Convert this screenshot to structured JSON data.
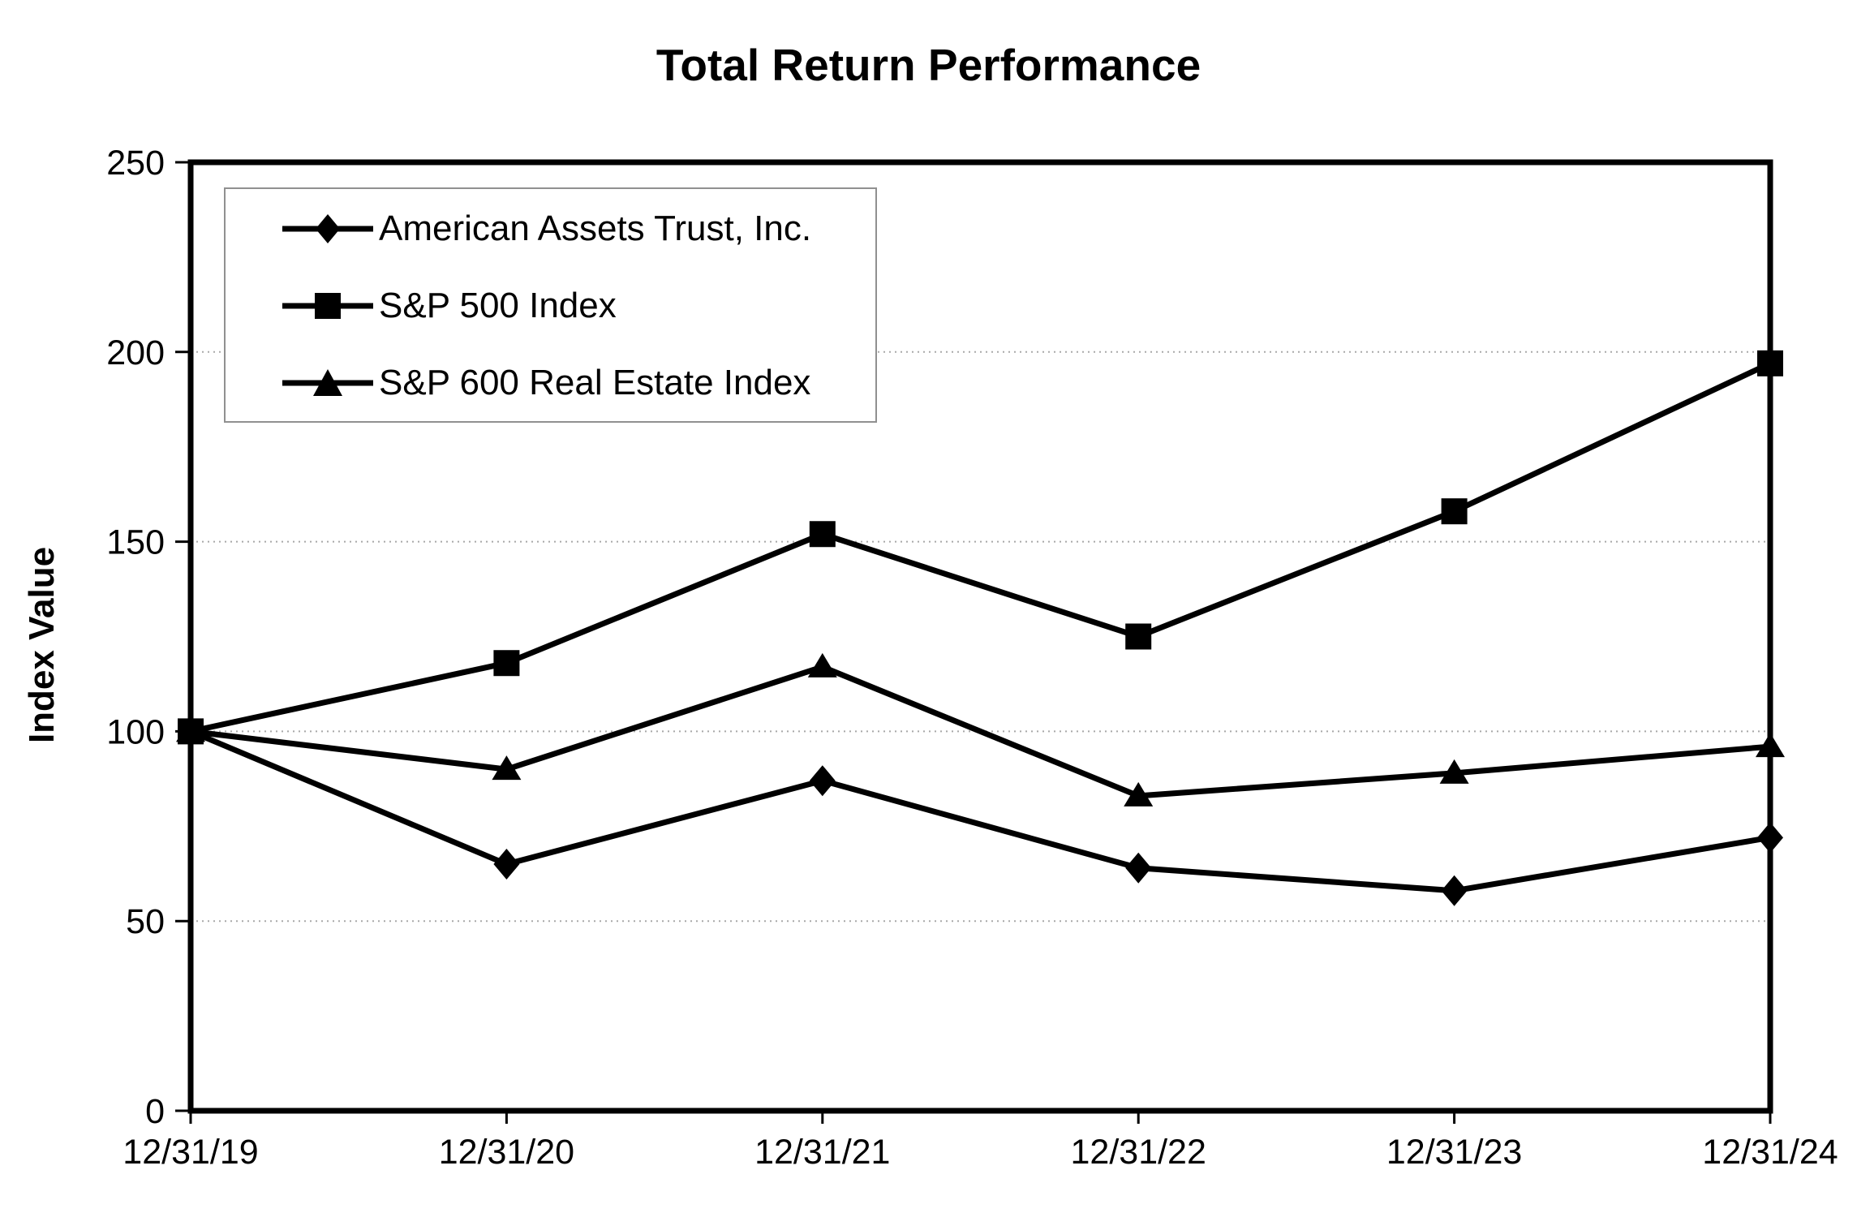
{
  "chart_data": {
    "type": "line",
    "title": "Total Return Performance",
    "ylabel": "Index Value",
    "xlabel": "",
    "categories": [
      "12/31/19",
      "12/31/20",
      "12/31/21",
      "12/31/22",
      "12/31/23",
      "12/31/24"
    ],
    "series": [
      {
        "name": "American Assets Trust, Inc.",
        "marker": "diamond",
        "values": [
          100,
          65,
          87,
          64,
          58,
          72
        ]
      },
      {
        "name": "S&P 500 Index",
        "marker": "square",
        "values": [
          100,
          118,
          152,
          125,
          158,
          197
        ]
      },
      {
        "name": "S&P 600 Real Estate Index",
        "marker": "triangle",
        "values": [
          100,
          90,
          117,
          83,
          89,
          96
        ]
      }
    ],
    "ylim": [
      0,
      250
    ],
    "yticks": [
      0,
      50,
      100,
      150,
      200,
      250
    ],
    "grid": "horizontal dotted gridlines at every 50",
    "legend_position": "upper-left inside plot",
    "colors": {
      "series": "#000000",
      "grid": "#a8a8a8",
      "legend_border": "#909090"
    }
  }
}
